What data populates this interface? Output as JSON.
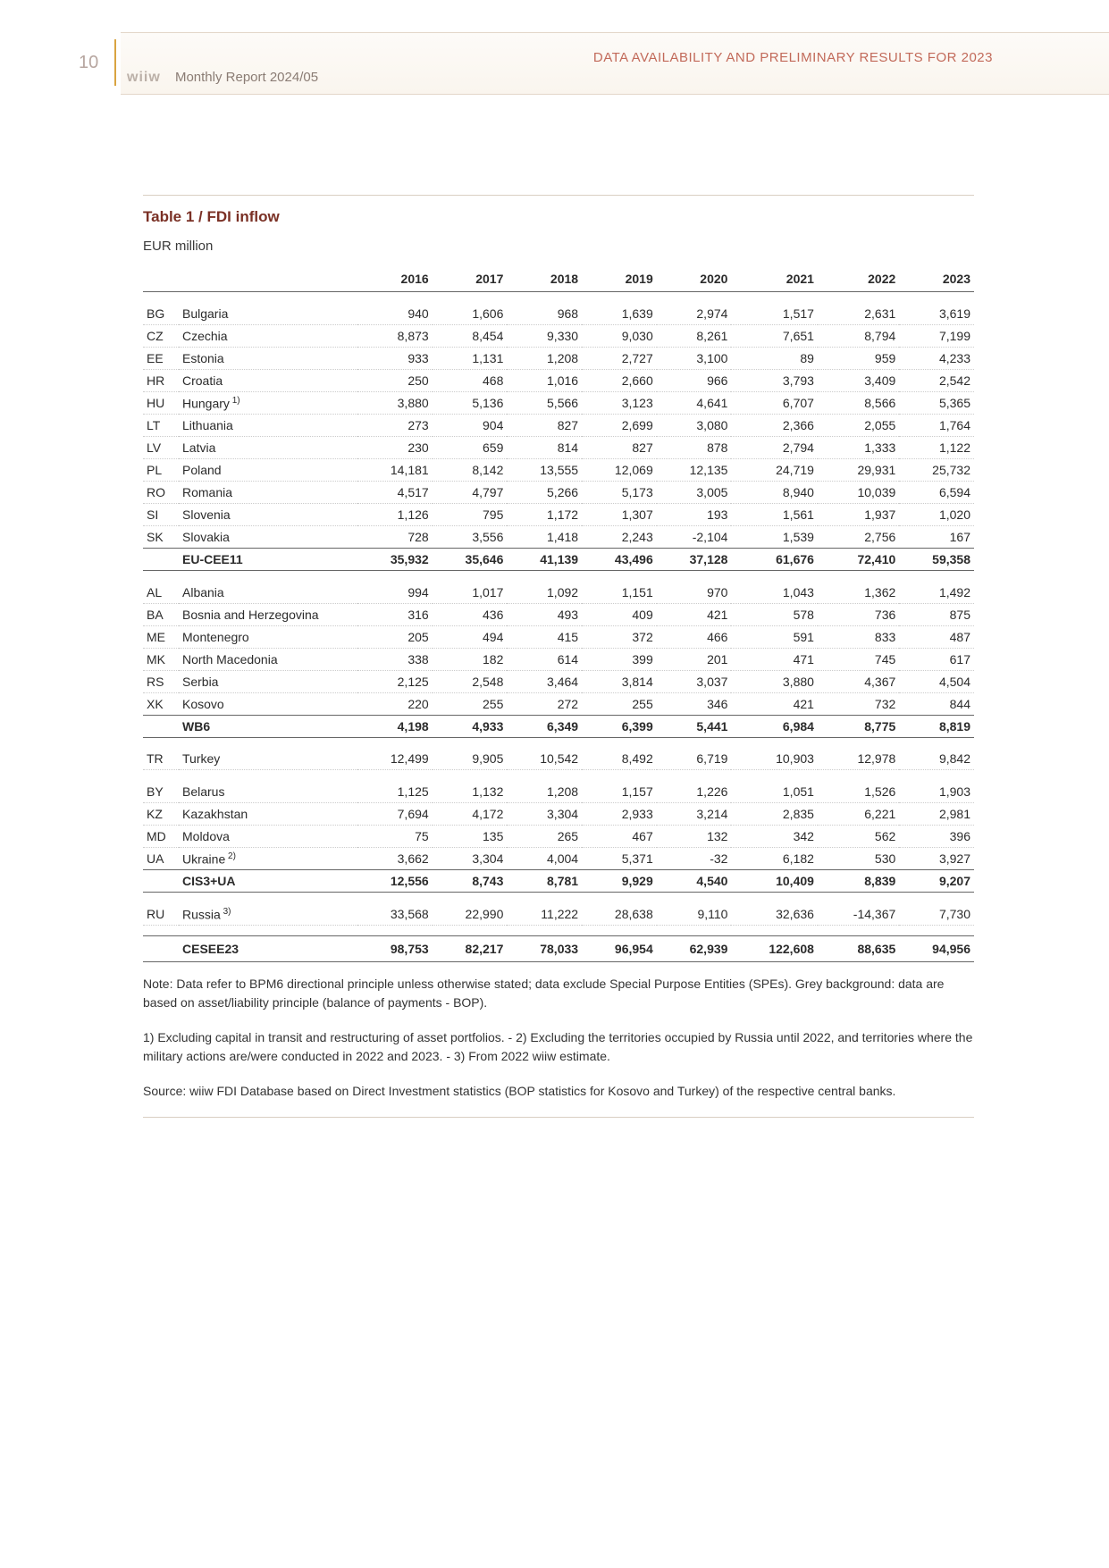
{
  "page_number": "10",
  "header": {
    "section_title": "DATA AVAILABILITY AND PRELIMINARY RESULTS FOR 2023",
    "brand": "wiiw",
    "report_line": "Monthly Report 2024/05",
    "accent_color": "#c26a5a",
    "page_num_color": "#b7a6a0",
    "rule_color": "#d9cfc3"
  },
  "table": {
    "title": "Table 1 / FDI inflow",
    "subtitle": "EUR million",
    "years": [
      "2016",
      "2017",
      "2018",
      "2019",
      "2020",
      "2021",
      "2022",
      "2023"
    ],
    "groups": [
      {
        "rows": [
          {
            "code": "BG",
            "name": "Bulgaria",
            "v": [
              "940",
              "1,606",
              "968",
              "1,639",
              "2,974",
              "1,517",
              "2,631",
              "3,619"
            ]
          },
          {
            "code": "CZ",
            "name": "Czechia",
            "v": [
              "8,873",
              "8,454",
              "9,330",
              "9,030",
              "8,261",
              "7,651",
              "8,794",
              "7,199"
            ]
          },
          {
            "code": "EE",
            "name": "Estonia",
            "v": [
              "933",
              "1,131",
              "1,208",
              "2,727",
              "3,100",
              "89",
              "959",
              "4,233"
            ]
          },
          {
            "code": "HR",
            "name": "Croatia",
            "v": [
              "250",
              "468",
              "1,016",
              "2,660",
              "966",
              "3,793",
              "3,409",
              "2,542"
            ]
          },
          {
            "code": "HU",
            "name": "Hungary",
            "sup": "1)",
            "v": [
              "3,880",
              "5,136",
              "5,566",
              "3,123",
              "4,641",
              "6,707",
              "8,566",
              "5,365"
            ]
          },
          {
            "code": "LT",
            "name": "Lithuania",
            "v": [
              "273",
              "904",
              "827",
              "2,699",
              "3,080",
              "2,366",
              "2,055",
              "1,764"
            ]
          },
          {
            "code": "LV",
            "name": "Latvia",
            "v": [
              "230",
              "659",
              "814",
              "827",
              "878",
              "2,794",
              "1,333",
              "1,122"
            ]
          },
          {
            "code": "PL",
            "name": "Poland",
            "v": [
              "14,181",
              "8,142",
              "13,555",
              "12,069",
              "12,135",
              "24,719",
              "29,931",
              "25,732"
            ]
          },
          {
            "code": "RO",
            "name": "Romania",
            "v": [
              "4,517",
              "4,797",
              "5,266",
              "5,173",
              "3,005",
              "8,940",
              "10,039",
              "6,594"
            ]
          },
          {
            "code": "SI",
            "name": "Slovenia",
            "v": [
              "1,126",
              "795",
              "1,172",
              "1,307",
              "193",
              "1,561",
              "1,937",
              "1,020"
            ]
          },
          {
            "code": "SK",
            "name": "Slovakia",
            "v": [
              "728",
              "3,556",
              "1,418",
              "2,243",
              "-2,104",
              "1,539",
              "2,756",
              "167"
            ]
          }
        ],
        "subtotal": {
          "name": "EU-CEE11",
          "v": [
            "35,932",
            "35,646",
            "41,139",
            "43,496",
            "37,128",
            "61,676",
            "72,410",
            "59,358"
          ]
        }
      },
      {
        "rows": [
          {
            "code": "AL",
            "name": "Albania",
            "v": [
              "994",
              "1,017",
              "1,092",
              "1,151",
              "970",
              "1,043",
              "1,362",
              "1,492"
            ]
          },
          {
            "code": "BA",
            "name": "Bosnia and Herzegovina",
            "v": [
              "316",
              "436",
              "493",
              "409",
              "421",
              "578",
              "736",
              "875"
            ]
          },
          {
            "code": "ME",
            "name": "Montenegro",
            "v": [
              "205",
              "494",
              "415",
              "372",
              "466",
              "591",
              "833",
              "487"
            ]
          },
          {
            "code": "MK",
            "name": "North Macedonia",
            "v": [
              "338",
              "182",
              "614",
              "399",
              "201",
              "471",
              "745",
              "617"
            ]
          },
          {
            "code": "RS",
            "name": "Serbia",
            "v": [
              "2,125",
              "2,548",
              "3,464",
              "3,814",
              "3,037",
              "3,880",
              "4,367",
              "4,504"
            ]
          },
          {
            "code": "XK",
            "name": "Kosovo",
            "v": [
              "220",
              "255",
              "272",
              "255",
              "346",
              "421",
              "732",
              "844"
            ]
          }
        ],
        "subtotal": {
          "name": "WB6",
          "v": [
            "4,198",
            "4,933",
            "6,349",
            "6,399",
            "5,441",
            "6,984",
            "8,775",
            "8,819"
          ]
        }
      },
      {
        "rows": [
          {
            "code": "TR",
            "name": "Turkey",
            "v": [
              "12,499",
              "9,905",
              "10,542",
              "8,492",
              "6,719",
              "10,903",
              "12,978",
              "9,842"
            ]
          }
        ]
      },
      {
        "rows": [
          {
            "code": "BY",
            "name": "Belarus",
            "v": [
              "1,125",
              "1,132",
              "1,208",
              "1,157",
              "1,226",
              "1,051",
              "1,526",
              "1,903"
            ]
          },
          {
            "code": "KZ",
            "name": "Kazakhstan",
            "v": [
              "7,694",
              "4,172",
              "3,304",
              "2,933",
              "3,214",
              "2,835",
              "6,221",
              "2,981"
            ]
          },
          {
            "code": "MD",
            "name": "Moldova",
            "v": [
              "75",
              "135",
              "265",
              "467",
              "132",
              "342",
              "562",
              "396"
            ]
          },
          {
            "code": "UA",
            "name": "Ukraine",
            "sup": "2)",
            "v": [
              "3,662",
              "3,304",
              "4,004",
              "5,371",
              "-32",
              "6,182",
              "530",
              "3,927"
            ]
          }
        ],
        "subtotal": {
          "name": "CIS3+UA",
          "v": [
            "12,556",
            "8,743",
            "8,781",
            "9,929",
            "4,540",
            "10,409",
            "8,839",
            "9,207"
          ]
        }
      },
      {
        "rows": [
          {
            "code": "RU",
            "name": "Russia",
            "sup": "3)",
            "v": [
              "33,568",
              "22,990",
              "11,222",
              "28,638",
              "9,110",
              "32,636",
              "-14,367",
              "7,730"
            ]
          }
        ]
      }
    ],
    "grand_total": {
      "name": "CESEE23",
      "v": [
        "98,753",
        "82,217",
        "78,033",
        "96,954",
        "62,939",
        "122,608",
        "88,635",
        "94,956"
      ]
    }
  },
  "notes": {
    "p1": "Note: Data refer to BPM6 directional principle unless otherwise stated; data exclude Special Purpose Entities (SPEs). Grey background: data are based on asset/liability principle (balance of payments - BOP).",
    "p2": "1) Excluding capital in transit and restructuring of asset portfolios. - 2) Excluding the territories occupied by Russia until 2022, and territories where the military actions are/were conducted in 2022 and 2023. - 3) From 2022 wiiw estimate.",
    "p3": "Source: wiiw FDI Database based on Direct Investment statistics (BOP statistics for Kosovo and Turkey) of the respective central banks."
  }
}
